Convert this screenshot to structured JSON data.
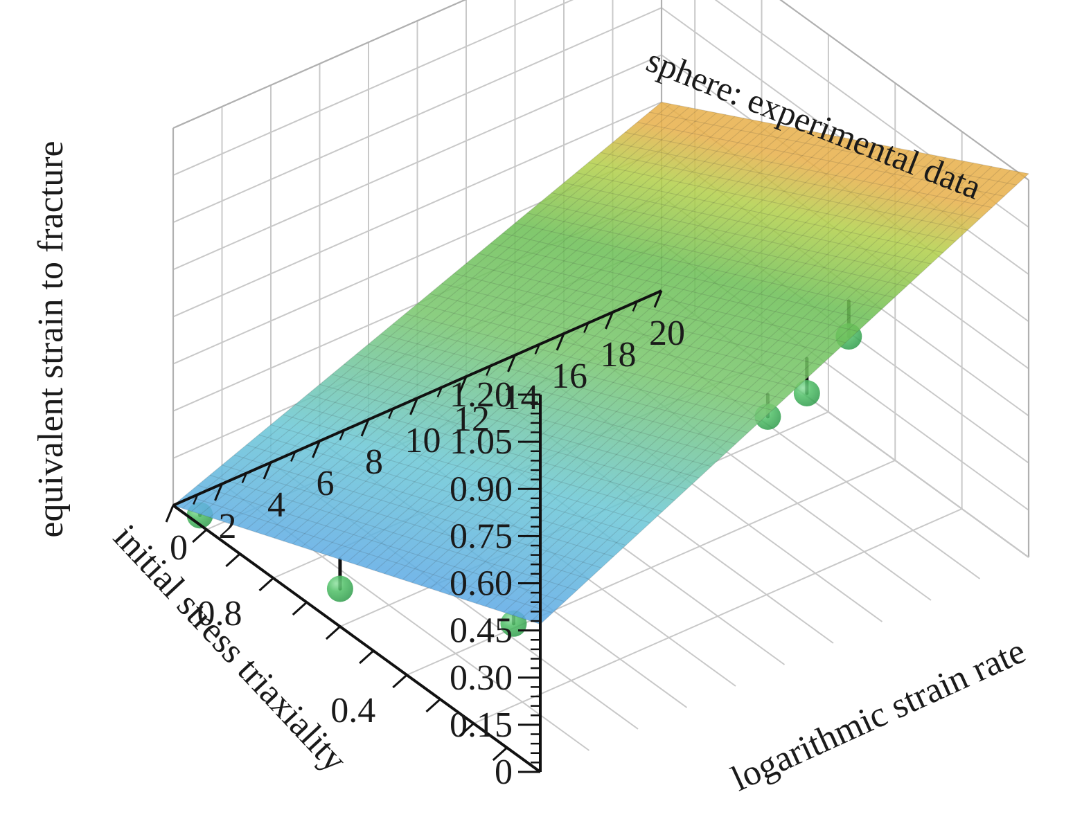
{
  "chart_data": {
    "type": "surface3d",
    "title": "",
    "annotation": "sphere: experimental data",
    "x_axis": {
      "label": "logarithmic strain rate",
      "range": [
        0,
        20
      ],
      "ticks": [
        "0",
        "2",
        "4",
        "6",
        "8",
        "10",
        "12",
        "14",
        "16",
        "18",
        "20"
      ]
    },
    "y_axis": {
      "label": "initial stress triaxiality",
      "range": [
        0,
        1.1
      ],
      "ticks": [
        "0.4",
        "0.8"
      ]
    },
    "z_axis": {
      "label": "equivalent strain to fracture",
      "range": [
        0,
        1.2
      ],
      "ticks": [
        "0",
        "0.15",
        "0.30",
        "0.45",
        "0.60",
        "0.75",
        "0.90",
        "1.05",
        "1.20"
      ]
    },
    "surface": {
      "colormap": [
        "#5aa3e8",
        "#6bc7d6",
        "#7fc77a",
        "#6cbf55",
        "#a8cc48",
        "#e8b84a"
      ],
      "corners": [
        {
          "strain_rate": 0,
          "triaxiality": 0,
          "strain": 0.47
        },
        {
          "strain_rate": 20,
          "triaxiality": 0,
          "strain": 1.22
        },
        {
          "strain_rate": 0,
          "triaxiality": 1.1,
          "strain": 0.0
        },
        {
          "strain_rate": 20,
          "triaxiality": 1.1,
          "strain": 0.6
        }
      ]
    },
    "experimental_points": [
      {
        "strain_rate": 0,
        "triaxiality": 0.08,
        "strain": 0.41
      },
      {
        "strain_rate": 0,
        "triaxiality": 0.6,
        "strain": 0.12
      },
      {
        "strain_rate": 0,
        "triaxiality": 1.02,
        "strain": 0.03
      },
      {
        "strain_rate": 10,
        "triaxiality": 0.05,
        "strain": 0.75
      },
      {
        "strain_rate": 11.6,
        "triaxiality": 0.05,
        "strain": 0.77
      },
      {
        "strain_rate": 14,
        "triaxiality": 0.1,
        "strain": 0.83
      }
    ]
  }
}
